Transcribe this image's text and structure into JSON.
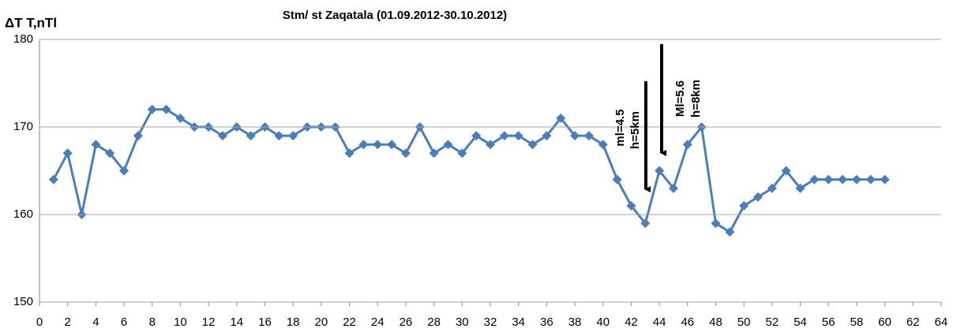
{
  "chart_data": {
    "type": "line",
    "title": "Stm/ st Zaqatala (01.09.2012-30.10.2012)",
    "y_label": "ΔT  T,nTl",
    "annotations": [
      "ml=4.5",
      "h=5km",
      "Ml=5.6",
      "h=8km"
    ],
    "x": [
      1,
      2,
      3,
      4,
      5,
      6,
      7,
      8,
      9,
      10,
      11,
      12,
      13,
      14,
      15,
      16,
      17,
      18,
      19,
      20,
      21,
      22,
      23,
      24,
      25,
      26,
      27,
      28,
      29,
      30,
      31,
      32,
      33,
      34,
      35,
      36,
      37,
      38,
      39,
      40,
      41,
      42,
      43,
      44,
      45,
      46,
      47,
      48,
      49,
      50,
      51,
      52,
      53,
      54,
      55,
      56,
      57,
      58,
      59,
      60
    ],
    "series": [
      {
        "name": "Stm",
        "color": "#4a7ebb",
        "values": [
          164,
          167,
          160,
          168,
          167,
          165,
          169,
          172,
          172,
          171,
          170,
          170,
          169,
          170,
          169,
          170,
          169,
          169,
          170,
          170,
          170,
          167,
          168,
          168,
          168,
          167,
          170,
          167,
          168,
          167,
          169,
          168,
          169,
          169,
          168,
          169,
          171,
          169,
          169,
          168,
          164,
          161,
          159,
          165,
          163,
          168,
          170,
          159,
          158,
          161,
          162,
          163,
          165,
          163,
          164,
          164,
          164,
          164,
          164,
          164
        ]
      }
    ],
    "xlim": [
      0,
      64
    ],
    "xticks": [
      0,
      2,
      4,
      6,
      8,
      10,
      12,
      14,
      16,
      18,
      20,
      22,
      24,
      26,
      28,
      30,
      32,
      34,
      36,
      38,
      40,
      42,
      44,
      46,
      48,
      50,
      52,
      54,
      56,
      58,
      60,
      62,
      64
    ],
    "ylim": [
      150,
      180
    ],
    "yticks": [
      150,
      160,
      170,
      180
    ],
    "grid": true
  }
}
